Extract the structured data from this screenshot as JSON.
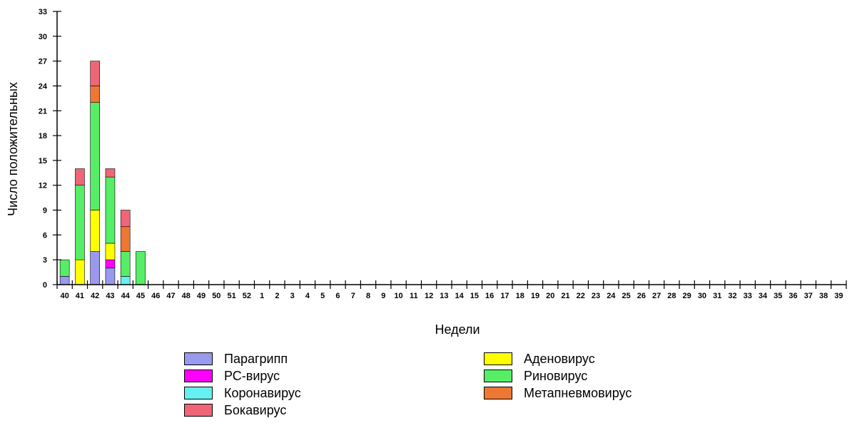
{
  "chart_data": {
    "type": "bar",
    "stacked": true,
    "xlabel": "Недели",
    "ylabel": "Число положительных",
    "ylim": [
      0,
      33
    ],
    "yticks": [
      0,
      3,
      6,
      9,
      12,
      15,
      18,
      21,
      24,
      27,
      30,
      33
    ],
    "grid": false,
    "legend_position": "bottom",
    "categories": [
      "40",
      "41",
      "42",
      "43",
      "44",
      "45",
      "46",
      "47",
      "48",
      "49",
      "50",
      "51",
      "52",
      "1",
      "2",
      "3",
      "4",
      "5",
      "6",
      "7",
      "8",
      "9",
      "10",
      "11",
      "12",
      "13",
      "14",
      "15",
      "16",
      "17",
      "18",
      "19",
      "20",
      "21",
      "22",
      "23",
      "24",
      "25",
      "26",
      "27",
      "28",
      "29",
      "30",
      "31",
      "32",
      "33",
      "34",
      "35",
      "36",
      "37",
      "38",
      "39"
    ],
    "series": [
      {
        "name": "Парагрипп",
        "color": "#9999ee",
        "values": [
          1,
          0,
          4,
          2,
          0,
          0,
          0,
          0,
          0,
          0,
          0,
          0,
          0,
          0,
          0,
          0,
          0,
          0,
          0,
          0,
          0,
          0,
          0,
          0,
          0,
          0,
          0,
          0,
          0,
          0,
          0,
          0,
          0,
          0,
          0,
          0,
          0,
          0,
          0,
          0,
          0,
          0,
          0,
          0,
          0,
          0,
          0,
          0,
          0,
          0,
          0,
          0
        ]
      },
      {
        "name": "РС-вирус",
        "color": "#ff00ff",
        "values": [
          0,
          0,
          0,
          1,
          0,
          0,
          0,
          0,
          0,
          0,
          0,
          0,
          0,
          0,
          0,
          0,
          0,
          0,
          0,
          0,
          0,
          0,
          0,
          0,
          0,
          0,
          0,
          0,
          0,
          0,
          0,
          0,
          0,
          0,
          0,
          0,
          0,
          0,
          0,
          0,
          0,
          0,
          0,
          0,
          0,
          0,
          0,
          0,
          0,
          0,
          0,
          0
        ]
      },
      {
        "name": "Коронавирус",
        "color": "#66f0f0",
        "values": [
          0,
          0,
          0,
          0,
          1,
          0,
          0,
          0,
          0,
          0,
          0,
          0,
          0,
          0,
          0,
          0,
          0,
          0,
          0,
          0,
          0,
          0,
          0,
          0,
          0,
          0,
          0,
          0,
          0,
          0,
          0,
          0,
          0,
          0,
          0,
          0,
          0,
          0,
          0,
          0,
          0,
          0,
          0,
          0,
          0,
          0,
          0,
          0,
          0,
          0,
          0,
          0
        ]
      },
      {
        "name": "Бокавирус",
        "color": "#ee6677",
        "values": [
          0,
          2,
          3,
          1,
          2,
          0,
          0,
          0,
          0,
          0,
          0,
          0,
          0,
          0,
          0,
          0,
          0,
          0,
          0,
          0,
          0,
          0,
          0,
          0,
          0,
          0,
          0,
          0,
          0,
          0,
          0,
          0,
          0,
          0,
          0,
          0,
          0,
          0,
          0,
          0,
          0,
          0,
          0,
          0,
          0,
          0,
          0,
          0,
          0,
          0,
          0,
          0
        ]
      },
      {
        "name": "Аденовирус",
        "color": "#ffff00",
        "values": [
          0,
          3,
          5,
          2,
          0,
          0,
          0,
          0,
          0,
          0,
          0,
          0,
          0,
          0,
          0,
          0,
          0,
          0,
          0,
          0,
          0,
          0,
          0,
          0,
          0,
          0,
          0,
          0,
          0,
          0,
          0,
          0,
          0,
          0,
          0,
          0,
          0,
          0,
          0,
          0,
          0,
          0,
          0,
          0,
          0,
          0,
          0,
          0,
          0,
          0,
          0,
          0
        ]
      },
      {
        "name": "Риновирус",
        "color": "#55ee66",
        "values": [
          2,
          9,
          13,
          8,
          3,
          4,
          0,
          0,
          0,
          0,
          0,
          0,
          0,
          0,
          0,
          0,
          0,
          0,
          0,
          0,
          0,
          0,
          0,
          0,
          0,
          0,
          0,
          0,
          0,
          0,
          0,
          0,
          0,
          0,
          0,
          0,
          0,
          0,
          0,
          0,
          0,
          0,
          0,
          0,
          0,
          0,
          0,
          0,
          0,
          0,
          0,
          0
        ]
      },
      {
        "name": "Метапневмовирус",
        "color": "#ee7733",
        "values": [
          0,
          0,
          2,
          0,
          3,
          0,
          0,
          0,
          0,
          0,
          0,
          0,
          0,
          0,
          0,
          0,
          0,
          0,
          0,
          0,
          0,
          0,
          0,
          0,
          0,
          0,
          0,
          0,
          0,
          0,
          0,
          0,
          0,
          0,
          0,
          0,
          0,
          0,
          0,
          0,
          0,
          0,
          0,
          0,
          0,
          0,
          0,
          0,
          0,
          0,
          0,
          0
        ]
      }
    ],
    "stack_order": [
      "Парагрипп",
      "РС-вирус",
      "Коронавирус",
      "Аденовирус",
      "Риновирус",
      "Метапневмовирус",
      "Бокавирус"
    ]
  }
}
